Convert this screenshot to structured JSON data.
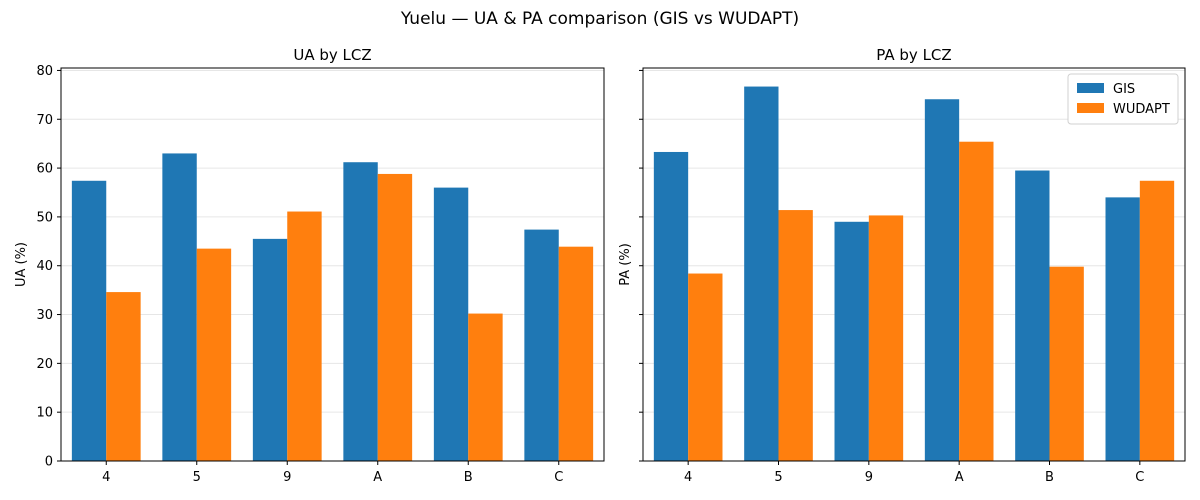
{
  "figure": {
    "suptitle": "Yuelu — UA & PA comparison (GIS vs WUDAPT)"
  },
  "colors": {
    "gis": "#1f77b4",
    "wudapt": "#ff7f0e"
  },
  "chart_data": [
    {
      "type": "bar",
      "title": "UA by LCZ",
      "xlabel": "",
      "ylabel": "UA (%)",
      "categories": [
        "4",
        "5",
        "9",
        "A",
        "B",
        "C"
      ],
      "series": [
        {
          "name": "GIS",
          "values": [
            57.4,
            63.0,
            45.5,
            61.2,
            56.0,
            47.4
          ]
        },
        {
          "name": "WUDAPT",
          "values": [
            34.6,
            43.5,
            51.1,
            58.8,
            30.2,
            43.9
          ]
        }
      ],
      "ylim": [
        0,
        80.5
      ],
      "yticks": [
        0,
        10,
        20,
        30,
        40,
        50,
        60,
        70,
        80
      ],
      "grid": "y",
      "legend": "none"
    },
    {
      "type": "bar",
      "title": "PA by LCZ",
      "xlabel": "",
      "ylabel": "PA (%)",
      "categories": [
        "4",
        "5",
        "9",
        "A",
        "B",
        "C"
      ],
      "series": [
        {
          "name": "GIS",
          "values": [
            63.3,
            76.7,
            49.0,
            74.1,
            59.5,
            54.0
          ]
        },
        {
          "name": "WUDAPT",
          "values": [
            38.4,
            51.4,
            50.3,
            65.4,
            39.8,
            57.4
          ]
        }
      ],
      "ylim": [
        0,
        80.5
      ],
      "yticks": [
        0,
        10,
        20,
        30,
        40,
        50,
        60,
        70,
        80
      ],
      "grid": "y",
      "legend": "top-right"
    }
  ]
}
